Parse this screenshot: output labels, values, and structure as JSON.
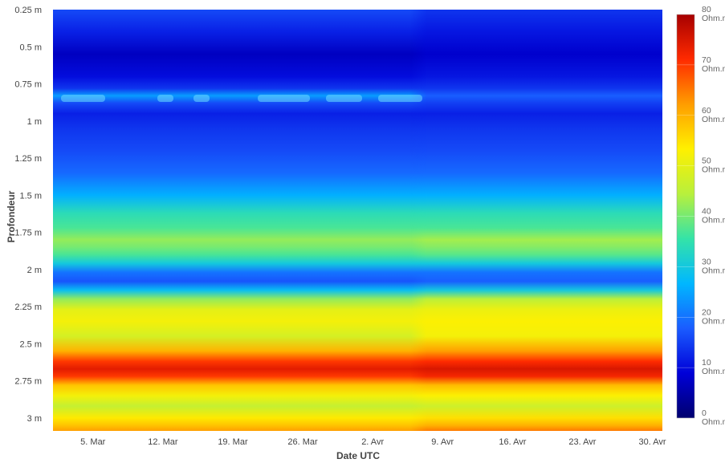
{
  "chart_data": {
    "type": "heatmap",
    "title": "",
    "xlabel": "Date UTC",
    "ylabel": "Profondeur",
    "x_ticks": [
      "5. Mar",
      "12. Mar",
      "19. Mar",
      "26. Mar",
      "2. Avr",
      "9. Avr",
      "16. Avr",
      "23. Avr",
      "30. Avr"
    ],
    "x_range": [
      "2023-03-01",
      "2023-04-30"
    ],
    "y_ticks": [
      "0.25 m",
      "0.5 m",
      "0.75 m",
      "1 m",
      "1.25 m",
      "1.5 m",
      "1.75 m",
      "2 m",
      "2.25 m",
      "2.5 m",
      "2.75 m",
      "3 m"
    ],
    "ylim_m": [
      0.25,
      3.1
    ],
    "y_reversed": true,
    "colorbar": {
      "range": [
        0,
        80
      ],
      "unit": "Ohm.m",
      "ticks": [
        {
          "value": 80,
          "label": "80"
        },
        {
          "value": 70,
          "label": "70"
        },
        {
          "value": 60,
          "label": "60"
        },
        {
          "value": 50,
          "label": "50"
        },
        {
          "value": 40,
          "label": "40"
        },
        {
          "value": 30,
          "label": "30"
        },
        {
          "value": 20,
          "label": "20"
        },
        {
          "value": 10,
          "label": "10"
        },
        {
          "value": 0,
          "label": "0"
        }
      ],
      "tick_unit_label": "Ohm.m",
      "colorscale": [
        "#00006e",
        "#0000d8",
        "#1a5cff",
        "#00b7ff",
        "#34e3a8",
        "#b8f03c",
        "#fff000",
        "#ff9d00",
        "#ff2a00",
        "#a60000"
      ]
    },
    "depth_profile": {
      "depth_m": [
        0.25,
        0.4,
        0.55,
        0.7,
        0.78,
        0.83,
        0.88,
        0.95,
        1.05,
        1.2,
        1.35,
        1.5,
        1.62,
        1.72,
        1.8,
        1.85,
        1.9,
        1.96,
        2.02,
        2.08,
        2.14,
        2.2,
        2.27,
        2.35,
        2.45,
        2.55,
        2.62,
        2.67,
        2.72,
        2.78,
        2.85,
        2.92,
        3.0,
        3.05,
        3.1
      ],
      "early_period_ohm_m": [
        16,
        12,
        7,
        10,
        14,
        24,
        16,
        12,
        14,
        16,
        19,
        26,
        34,
        37,
        42,
        40,
        37,
        30,
        20,
        17,
        28,
        42,
        50,
        52,
        48,
        60,
        70,
        74,
        70,
        58,
        52,
        46,
        54,
        58,
        62
      ],
      "late_period_ohm_m": [
        14,
        11,
        8,
        11,
        14,
        18,
        15,
        12,
        14,
        16,
        19,
        26,
        34,
        37,
        43,
        41,
        38,
        30,
        20,
        18,
        30,
        45,
        51,
        53,
        52,
        62,
        71,
        75,
        72,
        59,
        53,
        47,
        55,
        60,
        65
      ],
      "period_change_date": "2023-04-07"
    },
    "grid": false,
    "legend": "colorbar-right"
  }
}
